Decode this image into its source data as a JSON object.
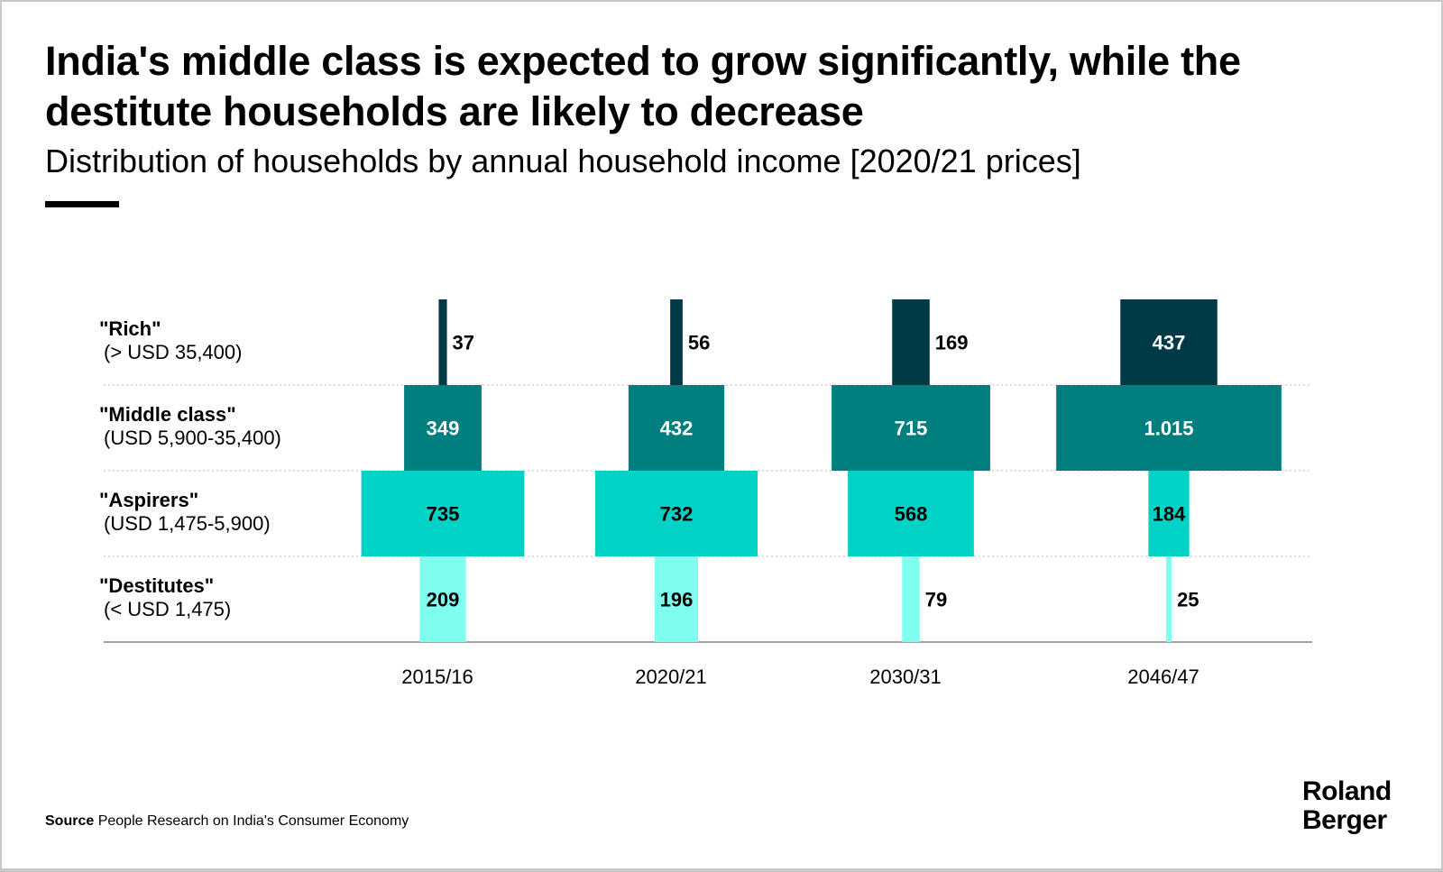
{
  "title": "India's middle class is expected to grow significantly, while the destitute households are likely to decrease",
  "subtitle": "Distribution of households by annual household income [2020/21 prices]",
  "source_label": "Source",
  "source_text": "People Research on India's Consumer Economy",
  "logo": "Roland Berger",
  "chart_data": {
    "type": "bar",
    "orientation": "centered-horizontal (funnel)",
    "categories": [
      "2015/16",
      "2020/21",
      "2030/31",
      "2046/47"
    ],
    "series": [
      {
        "name": "\"Rich\"",
        "range": "(> USD 35,400)",
        "color": "#003a46",
        "values": [
          37,
          56,
          169,
          437
        ],
        "labels": [
          "37",
          "56",
          "169",
          "437"
        ]
      },
      {
        "name": "\"Middle class\"",
        "range": "(USD 5,900-35,400)",
        "color": "#007f7e",
        "values": [
          349,
          432,
          715,
          1015
        ],
        "labels": [
          "349",
          "432",
          "715",
          "1.015"
        ]
      },
      {
        "name": "\"Aspirers\"",
        "range": "(USD 1,475-5,900)",
        "color": "#00d3c5",
        "values": [
          735,
          732,
          568,
          184
        ],
        "labels": [
          "735",
          "732",
          "568",
          "184"
        ]
      },
      {
        "name": "\"Destitutes\"",
        "range": "(< USD 1,475)",
        "color": "#80fff0",
        "values": [
          209,
          196,
          79,
          25
        ],
        "labels": [
          "209",
          "196",
          "79",
          "25"
        ]
      }
    ],
    "grid": "dotted row separators"
  }
}
